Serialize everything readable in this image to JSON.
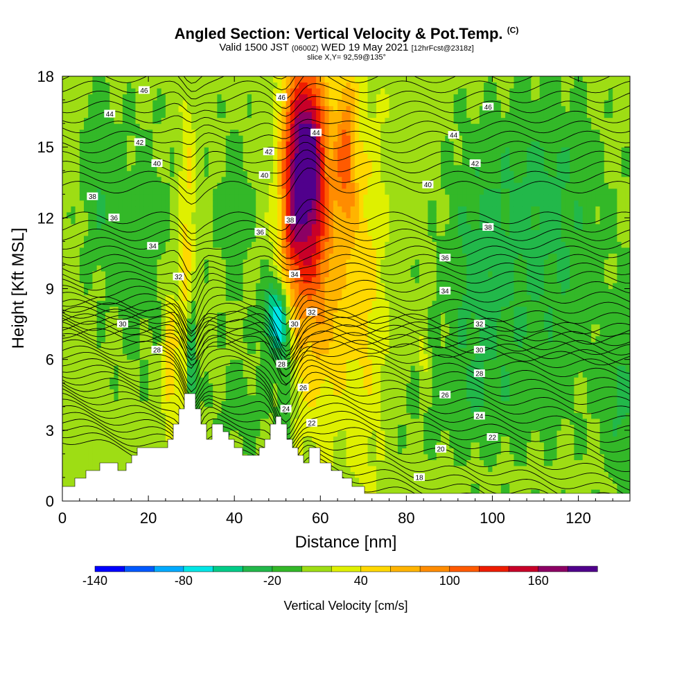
{
  "header": {
    "title_main": "Angled Section: Vertical Velocity & Pot.Temp.",
    "title_suffix": "(C)",
    "valid_a": "Valid 1500 JST",
    "valid_b": "(0600Z)",
    "valid_c": "WED 19 May 2021",
    "valid_d": "[12hrFcst@2318z]",
    "slice": "slice X,Y= 92,59@135°"
  },
  "chart_data": {
    "type": "heatmap",
    "xlabel": "Distance [nm]",
    "ylabel": "Height [Kft MSL]",
    "xlim": [
      0,
      132
    ],
    "ylim": [
      0,
      18
    ],
    "x_ticks": [
      0,
      20,
      40,
      60,
      80,
      100,
      120
    ],
    "y_ticks": [
      0,
      3,
      6,
      9,
      12,
      15,
      18
    ],
    "colorbar": {
      "label": "Vertical Velocity [cm/s]",
      "min": -140,
      "max": 200,
      "step": 20,
      "tick_labels": [
        "-140",
        "-80",
        "-20",
        "40",
        "100",
        "160"
      ],
      "tick_values": [
        -140,
        -80,
        -20,
        40,
        100,
        160
      ],
      "colors": [
        "#0000ff",
        "#0059ff",
        "#00aaff",
        "#00e6e6",
        "#00cc88",
        "#22b84a",
        "#33b828",
        "#9edd14",
        "#dff000",
        "#ffd800",
        "#ffb400",
        "#ff8c00",
        "#ff5a00",
        "#ee1c00",
        "#c80028",
        "#8c0064",
        "#50008c"
      ]
    },
    "theta_contours": {
      "units": "C",
      "levels": [
        18,
        20,
        22,
        24,
        26,
        28,
        30,
        32,
        34,
        36,
        38,
        40,
        42,
        44,
        46
      ],
      "labels": [
        {
          "value": 46,
          "x": 19,
          "y": 17.4
        },
        {
          "value": 44,
          "x": 11,
          "y": 16.4
        },
        {
          "value": 42,
          "x": 18,
          "y": 15.2
        },
        {
          "value": 40,
          "x": 22,
          "y": 14.3
        },
        {
          "value": 38,
          "x": 7,
          "y": 12.9
        },
        {
          "value": 36,
          "x": 12,
          "y": 12.0
        },
        {
          "value": 34,
          "x": 21,
          "y": 10.8
        },
        {
          "value": 32,
          "x": 27,
          "y": 9.5
        },
        {
          "value": 30,
          "x": 14,
          "y": 7.5
        },
        {
          "value": 28,
          "x": 22,
          "y": 6.4
        },
        {
          "value": 46,
          "x": 51,
          "y": 17.1
        },
        {
          "value": 44,
          "x": 59,
          "y": 15.6
        },
        {
          "value": 42,
          "x": 48,
          "y": 14.8
        },
        {
          "value": 40,
          "x": 47,
          "y": 13.8
        },
        {
          "value": 38,
          "x": 53,
          "y": 11.9
        },
        {
          "value": 36,
          "x": 46,
          "y": 11.4
        },
        {
          "value": 34,
          "x": 54,
          "y": 9.6
        },
        {
          "value": 32,
          "x": 58,
          "y": 8.0
        },
        {
          "value": 30,
          "x": 54,
          "y": 7.5
        },
        {
          "value": 28,
          "x": 51,
          "y": 5.8
        },
        {
          "value": 26,
          "x": 56,
          "y": 4.8
        },
        {
          "value": 24,
          "x": 52,
          "y": 3.9
        },
        {
          "value": 22,
          "x": 58,
          "y": 3.3
        },
        {
          "value": 46,
          "x": 99,
          "y": 16.7
        },
        {
          "value": 44,
          "x": 91,
          "y": 15.5
        },
        {
          "value": 42,
          "x": 96,
          "y": 14.3
        },
        {
          "value": 40,
          "x": 85,
          "y": 13.4
        },
        {
          "value": 38,
          "x": 99,
          "y": 11.6
        },
        {
          "value": 36,
          "x": 89,
          "y": 10.3
        },
        {
          "value": 34,
          "x": 89,
          "y": 8.9
        },
        {
          "value": 32,
          "x": 97,
          "y": 7.5
        },
        {
          "value": 30,
          "x": 97,
          "y": 6.4
        },
        {
          "value": 28,
          "x": 97,
          "y": 5.4
        },
        {
          "value": 26,
          "x": 89,
          "y": 4.5
        },
        {
          "value": 24,
          "x": 97,
          "y": 3.6
        },
        {
          "value": 22,
          "x": 100,
          "y": 2.7
        },
        {
          "value": 20,
          "x": 88,
          "y": 2.2
        },
        {
          "value": 18,
          "x": 83,
          "y": 1.0
        }
      ]
    }
  }
}
